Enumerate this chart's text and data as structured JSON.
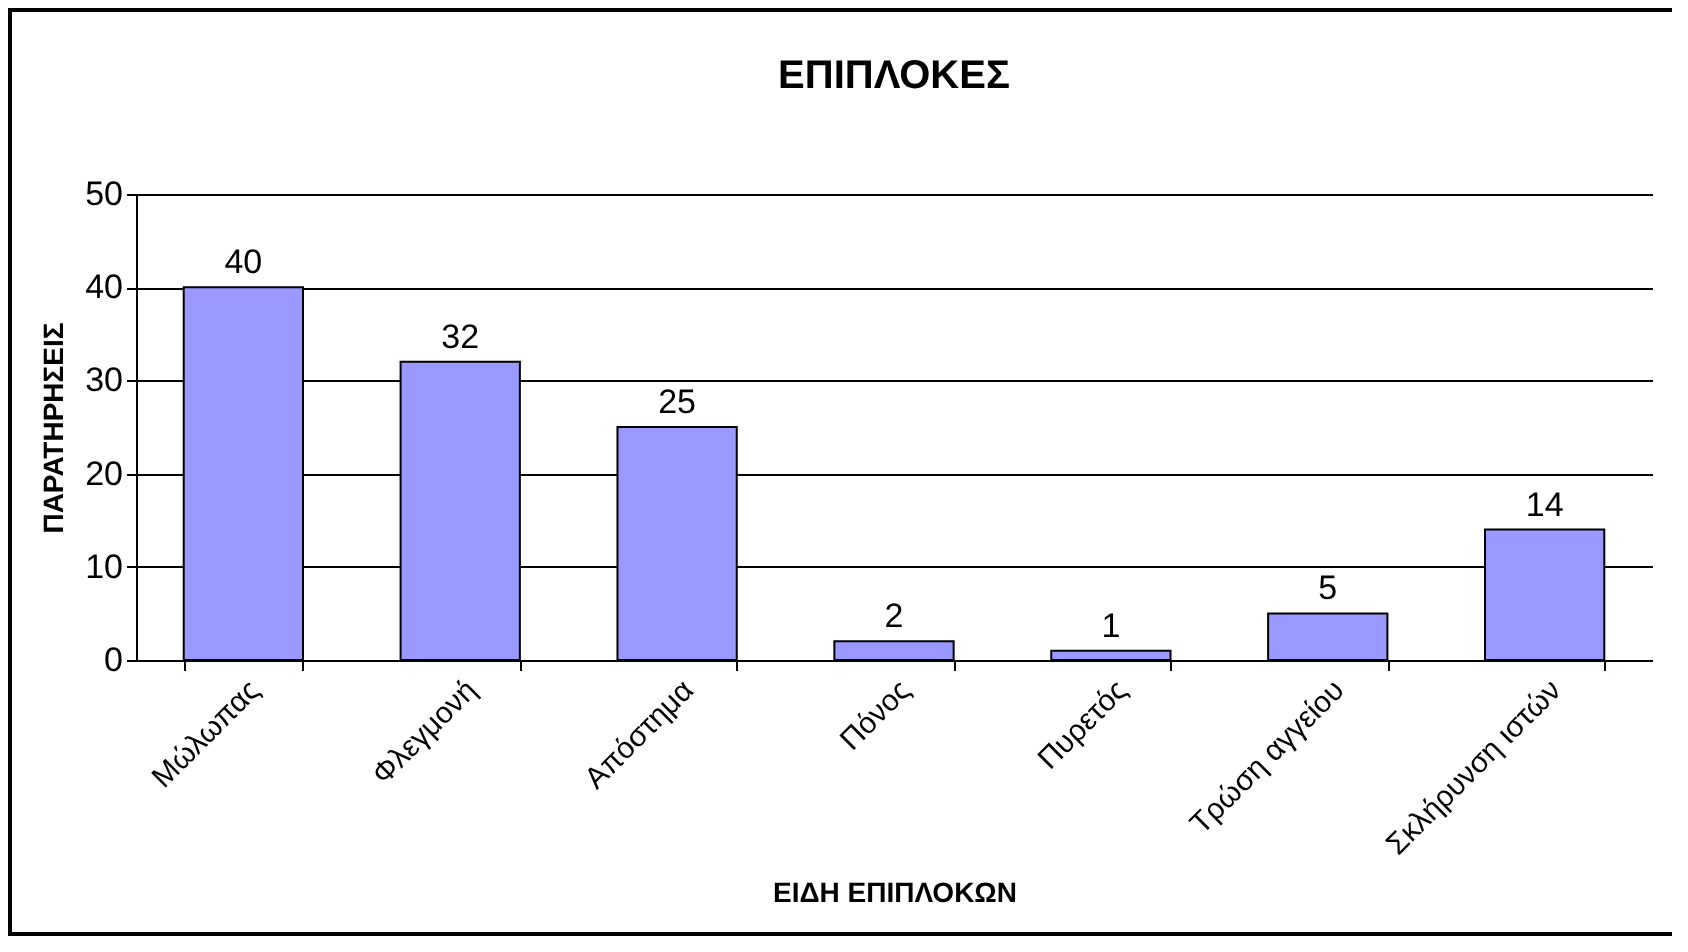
{
  "chart_data": {
    "type": "bar",
    "title": "ΕΠΙΠΛΟΚΕΣ",
    "xlabel": "ΕΙΔΗ ΕΠΙΠΛΟΚΩΝ",
    "ylabel": "ΠΑΡΑΤΗΡΗΣΕΙΣ",
    "categories": [
      "Μώλωπας",
      "Φλεγμονή",
      "Απόστημα",
      "Πόνος",
      "Πυρετός",
      "Τρώση αγγείου",
      "Σκλήρυνση ιστών"
    ],
    "values": [
      40,
      32,
      25,
      2,
      1,
      5,
      14
    ],
    "color": "#9999ff",
    "ylim": [
      0,
      50
    ],
    "yticks": [
      0,
      10,
      20,
      30,
      40,
      50
    ],
    "grid": "y",
    "data_labels": true
  }
}
